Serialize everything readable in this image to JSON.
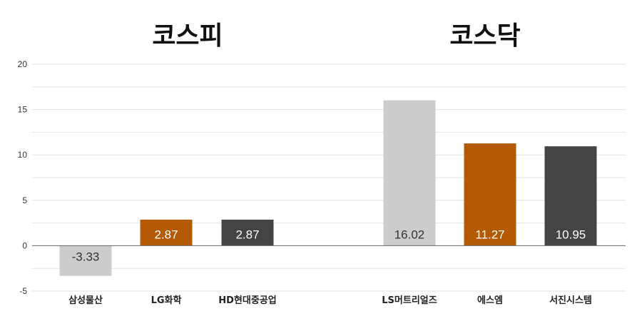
{
  "chart_data": {
    "type": "bar",
    "groups": [
      {
        "title": "코스피",
        "categories": [
          "삼성물산",
          "LG화학",
          "HD현대중공업"
        ],
        "values": [
          -3.33,
          2.87,
          2.87
        ],
        "value_labels": [
          "-3.33",
          "2.87",
          "2.87"
        ],
        "colors": [
          "#cccccc",
          "#b45a04",
          "#444444"
        ],
        "label_colors": [
          "#333333",
          "#ffffff",
          "#ffffff"
        ]
      },
      {
        "title": "코스닥",
        "categories": [
          "LS머트리얼즈",
          "에스엠",
          "서진시스템"
        ],
        "values": [
          16.02,
          11.27,
          10.95
        ],
        "value_labels": [
          "16.02",
          "11.27",
          "10.95"
        ],
        "colors": [
          "#cccccc",
          "#b45a04",
          "#444444"
        ],
        "label_colors": [
          "#333333",
          "#ffffff",
          "#ffffff"
        ]
      }
    ],
    "ylim": [
      -5,
      20
    ],
    "yticks": [
      "20",
      "15",
      "10",
      "5",
      "0",
      "-5"
    ],
    "ytick_values": [
      20,
      15,
      10,
      5,
      0,
      -5
    ],
    "grid": true,
    "legend": "none"
  }
}
